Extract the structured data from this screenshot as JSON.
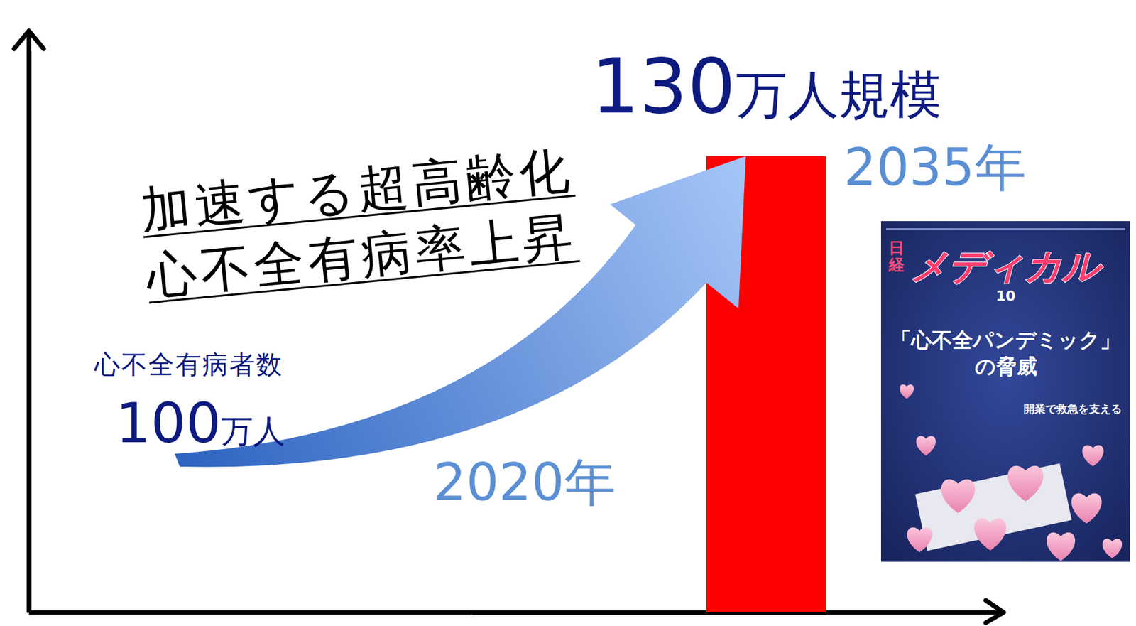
{
  "chart_data": {
    "type": "bar",
    "categories": [
      "2020年",
      "2035年"
    ],
    "values": [
      null,
      130
    ],
    "value_labels": [
      null,
      "130万人規模"
    ],
    "data_labels": true,
    "color": "#ff0000",
    "ylim": [
      0,
      160
    ],
    "yticks": [],
    "tick_labels": false,
    "annotations": [
      "加速する超高齢化",
      "心不全有病率上昇",
      "心不全有病者数",
      "100万人"
    ]
  },
  "magazine": {
    "brand_prefix": "日経",
    "brand": "メディカル",
    "issue": "10",
    "headline": "「心不全パンデミック」の脅威",
    "subhead": "開業で救急を支える"
  }
}
